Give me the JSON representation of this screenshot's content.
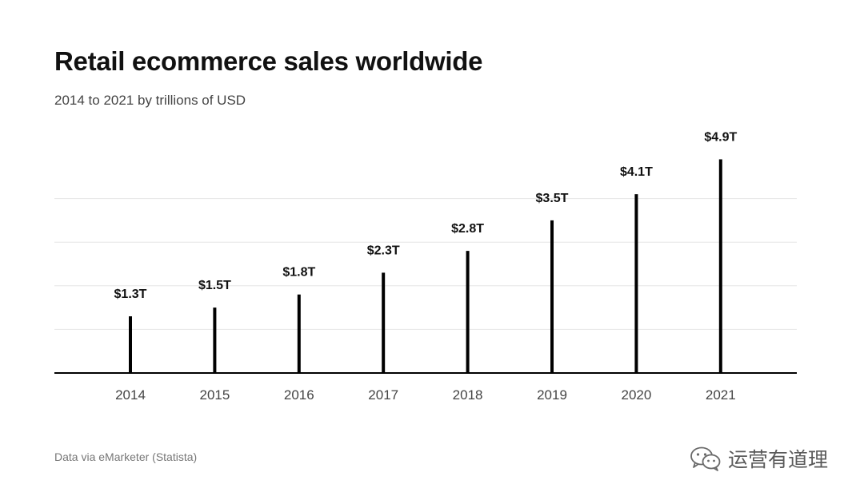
{
  "header": {
    "title": "Retail ecommerce sales worldwide",
    "subtitle": "2014 to 2021 by trillions of USD"
  },
  "footer": {
    "source": "Data via eMarketer (Statista)",
    "watermark": "运营有道理",
    "watermark_icon": "wechat-icon"
  },
  "colors": {
    "bar": "#000000",
    "grid": "#e6e6e6",
    "axis": "#000000",
    "tick_label": "#444444",
    "value_label": "#111111"
  },
  "chart_data": {
    "type": "bar",
    "title": "Retail ecommerce sales worldwide",
    "subtitle": "2014 to 2021 by trillions of USD",
    "categories": [
      "2014",
      "2015",
      "2016",
      "2017",
      "2018",
      "2019",
      "2020",
      "2021"
    ],
    "values": [
      1.3,
      1.5,
      1.8,
      2.3,
      2.8,
      3.5,
      4.1,
      4.9
    ],
    "data_labels": [
      "$1.3T",
      "$1.5T",
      "$1.8T",
      "$2.3T",
      "$2.8T",
      "$3.5T",
      "$4.1T",
      "$4.9T"
    ],
    "xlabel": "",
    "ylabel": "",
    "ylim": [
      0,
      5
    ],
    "gridlines": [
      1,
      2,
      3,
      4
    ],
    "grid": true,
    "legend": "none"
  }
}
